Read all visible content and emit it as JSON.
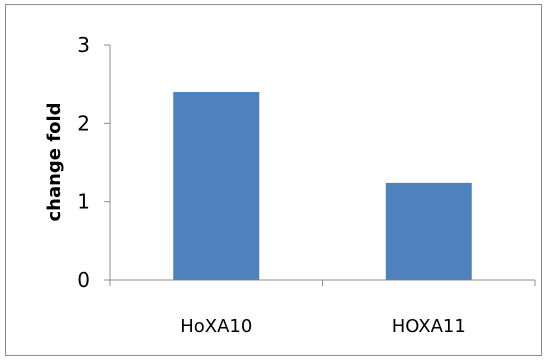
{
  "chart_data": {
    "type": "bar",
    "categories": [
      "HoXA10",
      "HOXA11"
    ],
    "values": [
      2.4,
      1.24
    ],
    "ylabel": "change fold",
    "xlabel": "",
    "ylim": [
      0,
      3
    ],
    "yticks": [
      "0",
      "1",
      "2",
      "3"
    ],
    "grid": false,
    "legend": "none",
    "bar_color": "#4f81bd"
  }
}
